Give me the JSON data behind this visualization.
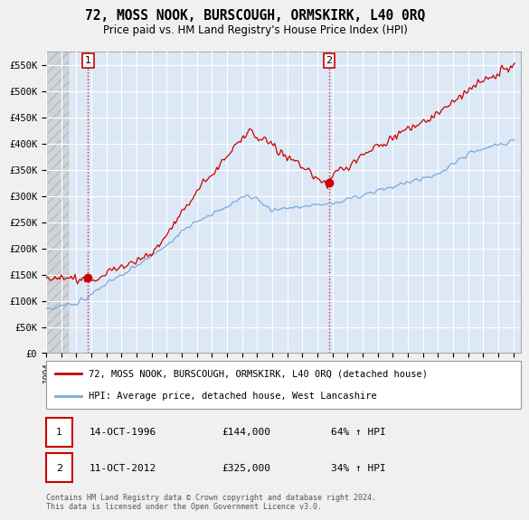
{
  "title": "72, MOSS NOOK, BURSCOUGH, ORMSKIRK, L40 0RQ",
  "subtitle": "Price paid vs. HM Land Registry's House Price Index (HPI)",
  "ylim": [
    0,
    575000
  ],
  "yticks": [
    0,
    50000,
    100000,
    150000,
    200000,
    250000,
    300000,
    350000,
    400000,
    450000,
    500000,
    550000
  ],
  "ytick_labels": [
    "£0",
    "£50K",
    "£100K",
    "£150K",
    "£200K",
    "£250K",
    "£300K",
    "£350K",
    "£400K",
    "£450K",
    "£500K",
    "£550K"
  ],
  "sale1_date": "14-OCT-1996",
  "sale1_price": 144000,
  "sale1_label": "64% ↑ HPI",
  "sale1_year": 1996.79,
  "sale2_date": "11-OCT-2012",
  "sale2_price": 325000,
  "sale2_label": "34% ↑ HPI",
  "sale2_year": 2012.79,
  "legend_line1": "72, MOSS NOOK, BURSCOUGH, ORMSKIRK, L40 0RQ (detached house)",
  "legend_line2": "HPI: Average price, detached house, West Lancashire",
  "footer": "Contains HM Land Registry data © Crown copyright and database right 2024.\nThis data is licensed under the Open Government Licence v3.0.",
  "sale_line_color": "#cc0000",
  "hpi_line_color": "#7aaadd",
  "plot_bg_color": "#dce8f5",
  "fig_bg_color": "#f0f0f0",
  "hatch_color": "#bbbbbb",
  "grid_color": "#ffffff",
  "xmin": 1994,
  "xmax": 2025.5
}
